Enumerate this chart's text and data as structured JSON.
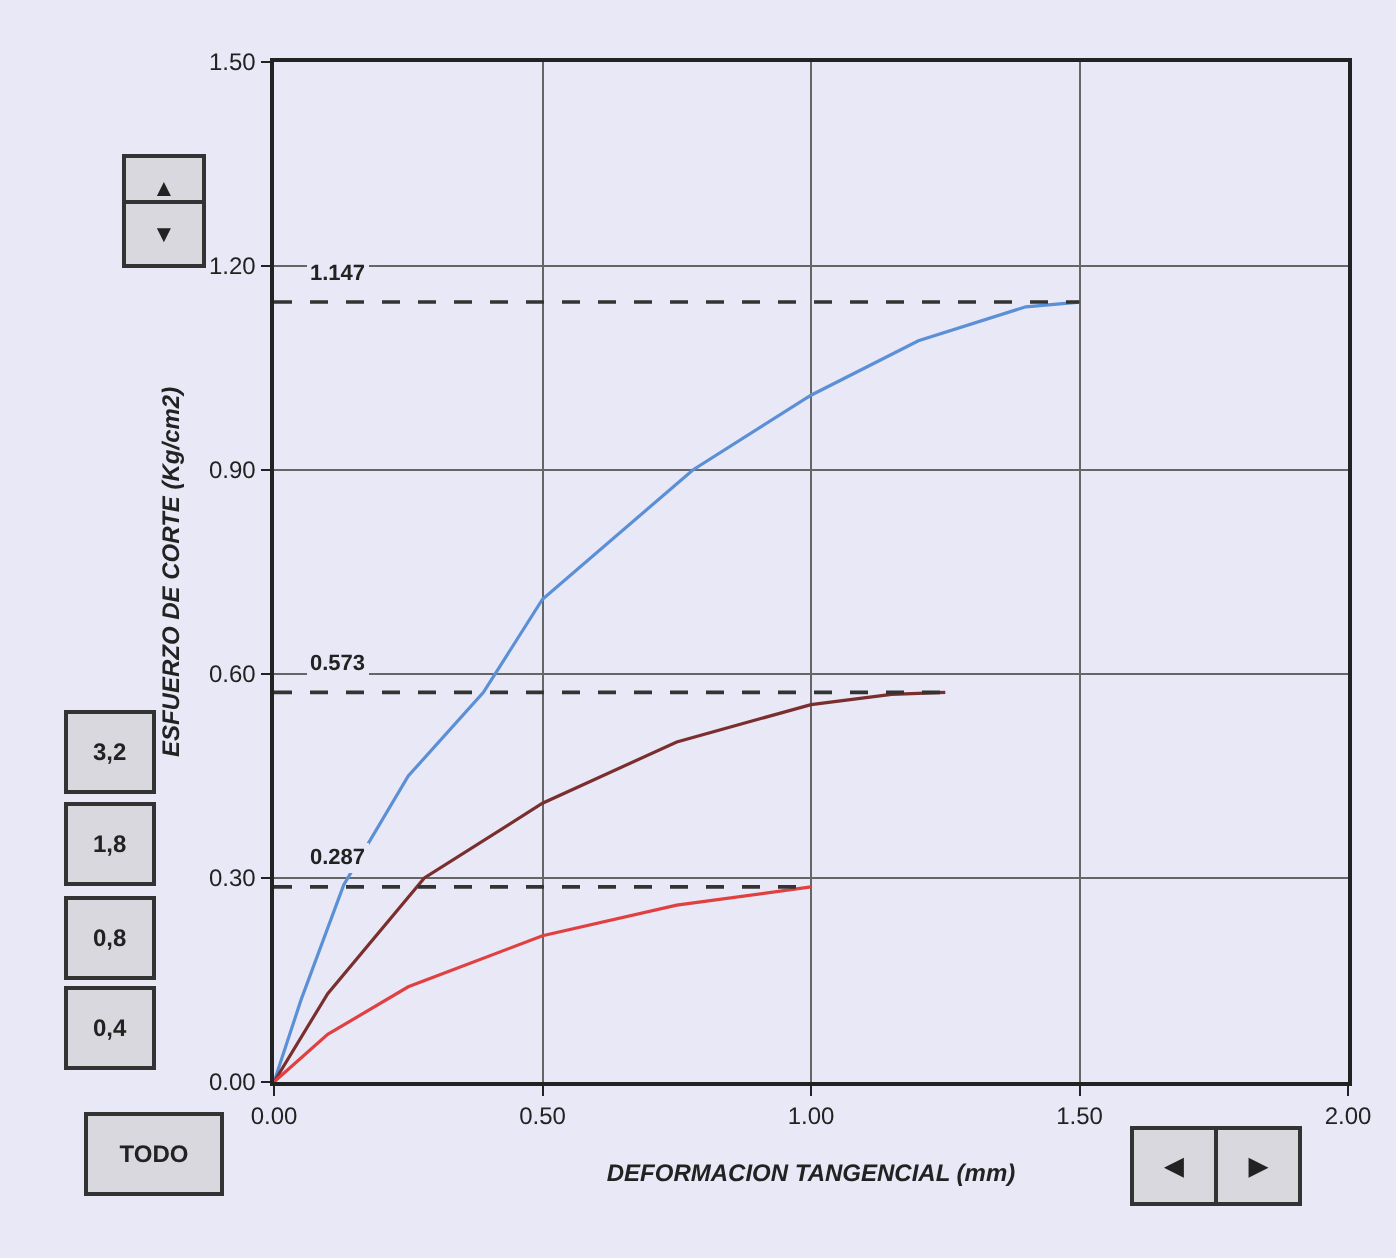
{
  "chart_data": {
    "type": "line",
    "xlabel": "DEFORMACION TANGENCIAL (mm)",
    "ylabel": "ESFUERZO DE CORTE (Kg/cm2)",
    "xlim": [
      0,
      2
    ],
    "xticks": [
      {
        "value": 0,
        "label": "0.00"
      },
      {
        "value": 0.5,
        "label": "0.50"
      },
      {
        "value": 1,
        "label": "1.00"
      },
      {
        "value": 1.5,
        "label": "1.50"
      },
      {
        "value": 2,
        "label": "2.00"
      }
    ],
    "ylim": [
      0,
      1.5
    ],
    "yticks": [
      {
        "value": 0,
        "label": "0.00"
      },
      {
        "value": 0.3,
        "label": "0.30"
      },
      {
        "value": 0.6,
        "label": "0.60"
      },
      {
        "value": 0.9,
        "label": "0.90"
      },
      {
        "value": 1.2,
        "label": "1.20"
      },
      {
        "value": 1.5,
        "label": "1.50"
      }
    ],
    "grid": true,
    "marker": "none",
    "series": [
      {
        "color": "#5b8fd6",
        "x": [
          0,
          0.05,
          0.13,
          0.25,
          0.39,
          0.5,
          0.78,
          1.0,
          1.2,
          1.4,
          1.5
        ],
        "values": [
          0,
          0.12,
          0.29,
          0.45,
          0.573,
          0.71,
          0.9,
          1.01,
          1.09,
          1.14,
          1.147
        ]
      },
      {
        "color": "#7a2e2e",
        "x": [
          0,
          0.1,
          0.28,
          0.5,
          0.75,
          1.0,
          1.15,
          1.25
        ],
        "values": [
          0,
          0.13,
          0.3,
          0.41,
          0.5,
          0.555,
          0.57,
          0.573
        ]
      },
      {
        "color": "#e04040",
        "x": [
          0,
          0.1,
          0.25,
          0.5,
          0.75,
          1.0
        ],
        "values": [
          0,
          0.07,
          0.14,
          0.215,
          0.26,
          0.287
        ]
      },
      {
        "color": "#333333",
        "line_style": "dashed",
        "x": [
          0,
          1.5
        ],
        "values": [
          1.147,
          1.147
        ]
      },
      {
        "color": "#333333",
        "line_style": "dashed",
        "x": [
          0,
          1.25
        ],
        "values": [
          0.573,
          0.573
        ]
      },
      {
        "color": "#333333",
        "line_style": "dashed",
        "x": [
          0,
          1.0
        ],
        "values": [
          0.287,
          0.287
        ]
      }
    ],
    "annotations": [
      {
        "text": "1.147",
        "y": 1.147
      },
      {
        "text": "0.573",
        "y": 0.573
      },
      {
        "text": "0.287",
        "y": 0.287
      },
      "3,2",
      "1,8",
      "0,8",
      "0,4",
      "TODO",
      "▲",
      "▼",
      "◀",
      "▶"
    ]
  }
}
